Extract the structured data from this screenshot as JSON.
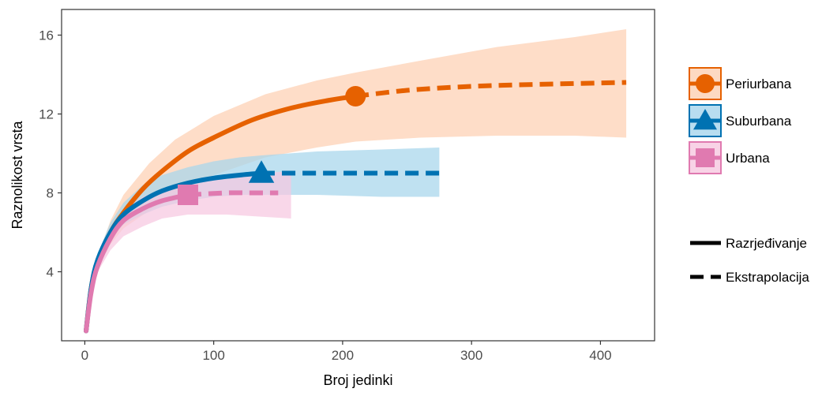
{
  "chart_data": {
    "type": "line",
    "title": "",
    "xlabel": "Broj jedinki",
    "ylabel": "Raznolikost vrsta",
    "xlim": [
      -18,
      442
    ],
    "ylim": [
      0.5,
      17.3
    ],
    "xticks": [
      0,
      100,
      200,
      300,
      400
    ],
    "yticks": [
      4,
      8,
      12,
      16
    ],
    "grid": false,
    "legend_position": "right",
    "series": [
      {
        "name": "Periurbana",
        "color": "#E66100",
        "band_color": "#FDD0B3",
        "marker": "circle",
        "reference_point": [
          210,
          12.9
        ],
        "rarefaction": [
          [
            1,
            1
          ],
          [
            5,
            3.2
          ],
          [
            10,
            4.5
          ],
          [
            20,
            6.0
          ],
          [
            30,
            7.0
          ],
          [
            45,
            8.2
          ],
          [
            60,
            9.1
          ],
          [
            80,
            10.1
          ],
          [
            100,
            10.8
          ],
          [
            130,
            11.7
          ],
          [
            160,
            12.3
          ],
          [
            190,
            12.7
          ],
          [
            210,
            12.9
          ]
        ],
        "extrapolation": [
          [
            210,
            12.9
          ],
          [
            250,
            13.2
          ],
          [
            300,
            13.4
          ],
          [
            350,
            13.5
          ],
          [
            420,
            13.6
          ]
        ],
        "band_upper": [
          [
            1,
            1
          ],
          [
            10,
            4.8
          ],
          [
            20,
            6.6
          ],
          [
            30,
            7.9
          ],
          [
            50,
            9.5
          ],
          [
            70,
            10.7
          ],
          [
            100,
            11.9
          ],
          [
            140,
            13.0
          ],
          [
            180,
            13.7
          ],
          [
            210,
            14.1
          ],
          [
            260,
            14.7
          ],
          [
            320,
            15.4
          ],
          [
            380,
            15.9
          ],
          [
            420,
            16.3
          ]
        ],
        "band_lower": [
          [
            1,
            1
          ],
          [
            10,
            4.2
          ],
          [
            20,
            5.4
          ],
          [
            30,
            6.2
          ],
          [
            50,
            7.1
          ],
          [
            70,
            7.8
          ],
          [
            100,
            8.9
          ],
          [
            140,
            9.8
          ],
          [
            180,
            10.3
          ],
          [
            210,
            10.6
          ],
          [
            260,
            10.8
          ],
          [
            320,
            10.9
          ],
          [
            380,
            10.9
          ],
          [
            420,
            10.8
          ]
        ]
      },
      {
        "name": "Suburbana",
        "color": "#0072B2",
        "band_color": "#A6D5EC",
        "marker": "triangle",
        "reference_point": [
          137,
          9.0
        ],
        "rarefaction": [
          [
            1,
            1
          ],
          [
            5,
            3.2
          ],
          [
            10,
            4.6
          ],
          [
            20,
            6.0
          ],
          [
            30,
            6.9
          ],
          [
            45,
            7.6
          ],
          [
            60,
            8.1
          ],
          [
            80,
            8.5
          ],
          [
            100,
            8.75
          ],
          [
            120,
            8.9
          ],
          [
            137,
            9.0
          ]
        ],
        "extrapolation": [
          [
            137,
            9.0
          ],
          [
            180,
            9.0
          ],
          [
            220,
            9.0
          ],
          [
            275,
            9.0
          ]
        ],
        "band_upper": [
          [
            1,
            1
          ],
          [
            10,
            4.9
          ],
          [
            20,
            6.5
          ],
          [
            30,
            7.5
          ],
          [
            45,
            8.4
          ],
          [
            60,
            8.9
          ],
          [
            80,
            9.3
          ],
          [
            100,
            9.6
          ],
          [
            120,
            9.8
          ],
          [
            137,
            9.9
          ],
          [
            180,
            10.1
          ],
          [
            230,
            10.2
          ],
          [
            275,
            10.3
          ]
        ],
        "band_lower": [
          [
            1,
            1
          ],
          [
            10,
            4.3
          ],
          [
            20,
            5.6
          ],
          [
            30,
            6.4
          ],
          [
            45,
            6.9
          ],
          [
            60,
            7.3
          ],
          [
            80,
            7.6
          ],
          [
            100,
            7.8
          ],
          [
            120,
            7.9
          ],
          [
            137,
            7.9
          ],
          [
            180,
            7.9
          ],
          [
            230,
            7.8
          ],
          [
            275,
            7.8
          ]
        ]
      },
      {
        "name": "Urbana",
        "color": "#E07AB0",
        "band_color": "#F6C8E0",
        "marker": "square",
        "reference_point": [
          80,
          7.9
        ],
        "rarefaction": [
          [
            1,
            1
          ],
          [
            5,
            3.0
          ],
          [
            10,
            4.3
          ],
          [
            20,
            5.7
          ],
          [
            30,
            6.6
          ],
          [
            45,
            7.2
          ],
          [
            60,
            7.6
          ],
          [
            80,
            7.9
          ]
        ],
        "extrapolation": [
          [
            80,
            7.9
          ],
          [
            110,
            8.0
          ],
          [
            130,
            8.0
          ],
          [
            150,
            8.0
          ]
        ],
        "band_upper": [
          [
            1,
            1
          ],
          [
            10,
            4.6
          ],
          [
            20,
            6.2
          ],
          [
            30,
            7.1
          ],
          [
            45,
            7.8
          ],
          [
            60,
            8.2
          ],
          [
            80,
            8.5
          ],
          [
            110,
            8.8
          ],
          [
            135,
            9.0
          ],
          [
            160,
            9.1
          ]
        ],
        "band_lower": [
          [
            1,
            1
          ],
          [
            10,
            4.0
          ],
          [
            20,
            5.1
          ],
          [
            30,
            5.8
          ],
          [
            45,
            6.3
          ],
          [
            60,
            6.7
          ],
          [
            80,
            6.9
          ],
          [
            110,
            6.9
          ],
          [
            135,
            6.8
          ],
          [
            160,
            6.7
          ]
        ]
      }
    ],
    "linetype_legend": [
      {
        "label": "Razrjeđivanje",
        "style": "solid"
      },
      {
        "label": "Ekstrapolacija",
        "style": "dashed"
      }
    ]
  }
}
